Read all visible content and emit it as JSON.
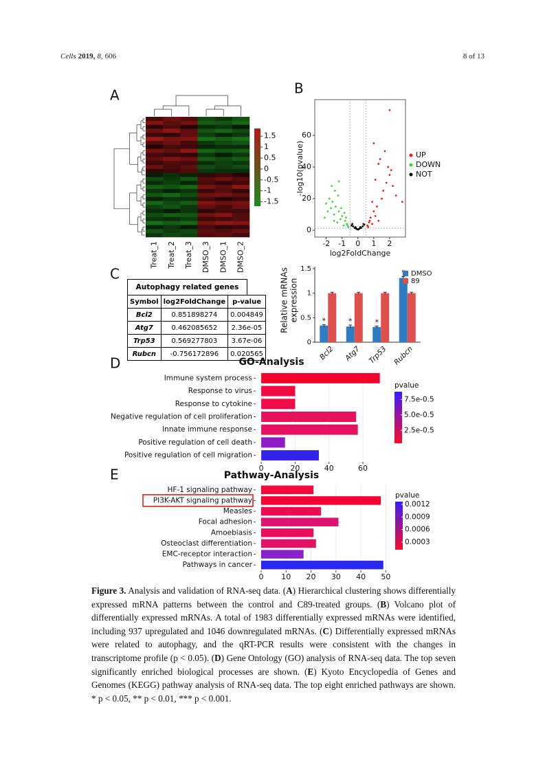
{
  "header": {
    "journal": "Cells",
    "year": "2019,",
    "volume": "8,",
    "article": "606",
    "page": "8 of 13"
  },
  "chart_data": [
    {
      "type": "heatmap",
      "panel_label": "A",
      "columns": [
        "Treat_1",
        "Treat_2",
        "Treat_3",
        "DMSO_3",
        "DMSO_1",
        "DMSO_2"
      ],
      "values": [
        [
          0.6,
          0.9,
          0.7,
          -0.8,
          -0.6,
          -0.9
        ],
        [
          1.1,
          0.8,
          1.0,
          -1.0,
          -0.9,
          -1.1
        ],
        [
          0.4,
          0.7,
          0.3,
          -0.5,
          -0.6,
          -0.3
        ],
        [
          0.9,
          1.2,
          0.8,
          -0.9,
          -1.1,
          -0.8
        ],
        [
          0.5,
          0.4,
          0.8,
          -0.7,
          -0.4,
          -0.6
        ],
        [
          1.3,
          1.0,
          1.1,
          -1.2,
          -1.0,
          -1.2
        ],
        [
          0.7,
          0.9,
          0.6,
          -0.6,
          -0.8,
          -0.9
        ],
        [
          0.3,
          0.6,
          0.5,
          -0.4,
          -0.5,
          -0.5
        ],
        [
          1.0,
          0.8,
          1.2,
          -1.1,
          -0.9,
          -1.0
        ],
        [
          0.6,
          0.5,
          0.4,
          -0.6,
          -0.3,
          -0.6
        ],
        [
          0.8,
          1.1,
          0.9,
          -1.0,
          -0.8,
          -1.0
        ],
        [
          0.5,
          0.7,
          0.6,
          -0.5,
          -0.7,
          -0.6
        ],
        [
          0.9,
          0.6,
          0.8,
          -0.8,
          -0.7,
          -0.8
        ],
        [
          0.4,
          0.5,
          0.7,
          -0.6,
          -0.5,
          -0.5
        ],
        [
          -0.3,
          -0.5,
          -0.4,
          0.4,
          0.5,
          0.3
        ],
        [
          -0.8,
          -0.6,
          -0.9,
          0.7,
          0.9,
          0.7
        ],
        [
          -0.5,
          -0.7,
          -0.4,
          0.6,
          0.4,
          0.6
        ],
        [
          -1.0,
          -0.9,
          -1.1,
          1.0,
          0.8,
          1.2
        ],
        [
          -0.6,
          -0.4,
          -0.6,
          0.5,
          0.7,
          0.4
        ],
        [
          -0.9,
          -1.1,
          -0.8,
          0.9,
          1.0,
          0.8
        ],
        [
          -0.4,
          -0.6,
          -0.5,
          0.6,
          0.3,
          0.5
        ],
        [
          -1.1,
          -0.8,
          -1.0,
          1.1,
          0.9,
          1.0
        ],
        [
          -0.7,
          -0.9,
          -0.6,
          0.8,
          0.6,
          0.9
        ],
        [
          -0.5,
          -0.3,
          -0.6,
          0.4,
          0.6,
          0.5
        ],
        [
          -0.8,
          -1.0,
          -0.9,
          0.9,
          1.1,
          0.7
        ],
        [
          -0.6,
          -0.5,
          -0.7,
          0.5,
          0.6,
          0.7
        ],
        [
          -1.2,
          -1.0,
          -1.1,
          1.0,
          1.2,
          1.1
        ],
        [
          -0.4,
          -0.6,
          -0.3,
          0.6,
          0.4,
          0.5
        ],
        [
          -0.9,
          -0.7,
          -0.8,
          0.8,
          0.7,
          0.9
        ],
        [
          -0.6,
          -0.8,
          -0.7,
          0.7,
          0.8,
          0.6
        ]
      ],
      "vlim": [
        -1.5,
        1.5
      ],
      "colors": {
        "low": "#1f8a1f",
        "mid": "#000000",
        "high": "#b01a1a"
      },
      "colorbar_lim": [
        -1.7,
        1.85
      ],
      "colorbar_ticks": [
        1.5,
        1,
        0.5,
        0,
        -0.5,
        -1,
        -1.5
      ]
    },
    {
      "type": "scatter",
      "panel_label": "B",
      "x_label": "log2FoldChange",
      "y_label": "-log10(pvalue)",
      "xlim": [
        -2.72,
        3.0
      ],
      "ylim": [
        -4.3,
        82.6
      ],
      "xticks": [
        -2,
        -1,
        0,
        1,
        2
      ],
      "yticks": [
        0,
        20,
        40,
        60
      ],
      "thresholds": {
        "x": [
          -0.5,
          0.5
        ],
        "y": 1.3
      },
      "series": [
        {
          "name": "UP",
          "color": "#e8201c",
          "x": [
            0.6,
            0.7,
            0.8,
            0.9,
            1.0,
            1.1,
            1.2,
            1.3,
            1.5,
            1.6,
            1.8,
            2.0,
            2.2,
            2.4,
            1.4,
            1.7,
            1.9,
            2.1,
            0.9,
            1.1,
            1.3,
            0.65,
            0.75,
            1.0,
            2.8,
            2.0
          ],
          "values": [
            3,
            5,
            8,
            4,
            12,
            9,
            15,
            6,
            20,
            25,
            30,
            35,
            28,
            22,
            45,
            50,
            40,
            38,
            18,
            32,
            42,
            2,
            6,
            55,
            18,
            76
          ]
        },
        {
          "name": "DOWN",
          "color": "#3fd23f",
          "x": [
            -0.6,
            -0.7,
            -0.8,
            -0.9,
            -1.0,
            -1.1,
            -1.2,
            -1.3,
            -1.4,
            -1.5,
            -1.6,
            -1.7,
            -1.8,
            -1.9,
            -2.0,
            -2.1,
            -0.65,
            -0.75,
            -0.85,
            -1.05,
            -1.25,
            -1.45,
            -1.65,
            -1.2,
            -1.5
          ],
          "values": [
            2,
            4,
            6,
            3,
            9,
            7,
            12,
            5,
            15,
            10,
            18,
            14,
            20,
            12,
            17,
            8,
            3,
            8,
            11,
            14,
            22,
            25,
            28,
            31,
            6
          ]
        },
        {
          "name": "NOT",
          "color": "#000000",
          "x": [
            -0.4,
            -0.3,
            -0.2,
            -0.1,
            0,
            0.1,
            0.2,
            0.3,
            0.4,
            -0.35,
            0.35,
            -0.15,
            0.15,
            0.05,
            -0.05
          ],
          "values": [
            3,
            2.5,
            1.5,
            1,
            0.5,
            1,
            1.5,
            2.5,
            3.5,
            4,
            4,
            2,
            2,
            0.8,
            0.6
          ]
        }
      ]
    },
    {
      "type": "bar",
      "panel_label": "C",
      "y_label": [
        "Relative mRNAs",
        "expression"
      ],
      "categories": [
        "Bcl2",
        "Atg7",
        "Trp53",
        "Rubcn"
      ],
      "series": [
        {
          "name": "DMSO",
          "color": "#2e7dc4",
          "values": [
            0.34,
            0.32,
            0.31,
            1.31
          ],
          "errors": [
            0.02,
            0.03,
            0.02,
            0.03
          ]
        },
        {
          "name": "89",
          "color": "#e0504b",
          "values": [
            1,
            1,
            1,
            1
          ],
          "errors": [
            0.02,
            0.02,
            0.02,
            0.02
          ]
        }
      ],
      "annotations": [
        "*",
        "*",
        "*",
        "*"
      ],
      "ylim": [
        0,
        1.5
      ],
      "yticks": [
        0,
        0.5,
        1,
        1.5
      ]
    },
    {
      "type": "barh",
      "panel_label": "D",
      "title": "GO-Analysis",
      "categories": [
        "Immune system process",
        "Response to virus",
        "Response to cytokine",
        "Negative regulation of cell proliferation",
        "Innate immune response",
        "Positive regulation of cell death",
        "Positive regulation of cell migration"
      ],
      "values": [
        70,
        20,
        20,
        56,
        57,
        14,
        34
      ],
      "colors": [
        "#f8002e",
        "#f20a40",
        "#f00c44",
        "#e8125a",
        "#e6125e",
        "#8c1cc8",
        "#3422ea"
      ],
      "xlim": [
        -3.3,
        75
      ],
      "xticks": [
        0,
        20,
        40,
        60
      ],
      "colorbar": {
        "title": "pvalue",
        "colors": [
          "#3a1cff",
          "#ff0a28"
        ],
        "labels": [
          "7.5e-0.5",
          "5.0e-0.5",
          "2.5e-0.5"
        ]
      }
    },
    {
      "type": "barh",
      "panel_label": "E",
      "title": "Pathway-Analysis",
      "categories": [
        "HF-1 signaling pathway",
        "PI3K-AKT signaling pathway",
        "Measles",
        "Focal adhesion",
        "Amoebiasis",
        "Osteoclast differentiation",
        "EMC-receptor interaction",
        "Pathways in cancer"
      ],
      "values": [
        21,
        48,
        24,
        31,
        21,
        22,
        17,
        49
      ],
      "colors": [
        "#f40a3a",
        "#fa0030",
        "#ee0c50",
        "#de1270",
        "#ea0e5a",
        "#e41062",
        "#8a20ca",
        "#2a28f0"
      ],
      "xlim": [
        -2.2,
        51
      ],
      "xticks": [
        0,
        10,
        20,
        30,
        40,
        50
      ],
      "colorbar": {
        "title": "pvalue",
        "colors": [
          "#3a1cff",
          "#ff0a28"
        ],
        "lim": [
          0.00012,
          0.001265
        ],
        "ticks": [
          0.0012,
          0.0009,
          0.0006,
          0.0003
        ]
      }
    }
  ],
  "table": {
    "title": "Autophagy related genes",
    "columns": [
      "Symbol",
      "log2FoldChange",
      "p-value"
    ],
    "rows": [
      [
        "Bcl2",
        "0.851898274",
        "0.004849"
      ],
      [
        "Atg7",
        "0.462085652",
        "2.36e-05"
      ],
      [
        "Trp53",
        "0.569277803",
        "3.67e-06"
      ],
      [
        "Rubcn",
        "-0.756172896",
        "0.020565"
      ]
    ]
  },
  "caption": {
    "label": "Figure 3.",
    "parts": [
      "Analysis and validation of RNA-seq data. (",
      "A",
      ") Hierarchical clustering shows differentially expressed mRNA patterns between the control and C89-treated groups. (",
      "B",
      ") Volcano plot of differentially expressed mRNAs. A total of 1983 differentially expressed mRNAs were identified, including 937 upregulated and 1046 downregulated mRNAs. (",
      "C",
      ") Differentially expressed mRNAs were related to autophagy, and the qRT-PCR results were consistent with the changes in transcriptome profile (p < 0.05). (",
      "D",
      ") Gene Ontology (GO) analysis of RNA-seq data. The top seven significantly enriched biological processes are shown. (",
      "E",
      ") Kyoto Encyclopedia of Genes and Genomes (KEGG) pathway analysis of RNA-seq data. The top eight enriched pathways are shown. * p < 0.05, ** p < 0.01, *** p < 0.001."
    ]
  }
}
